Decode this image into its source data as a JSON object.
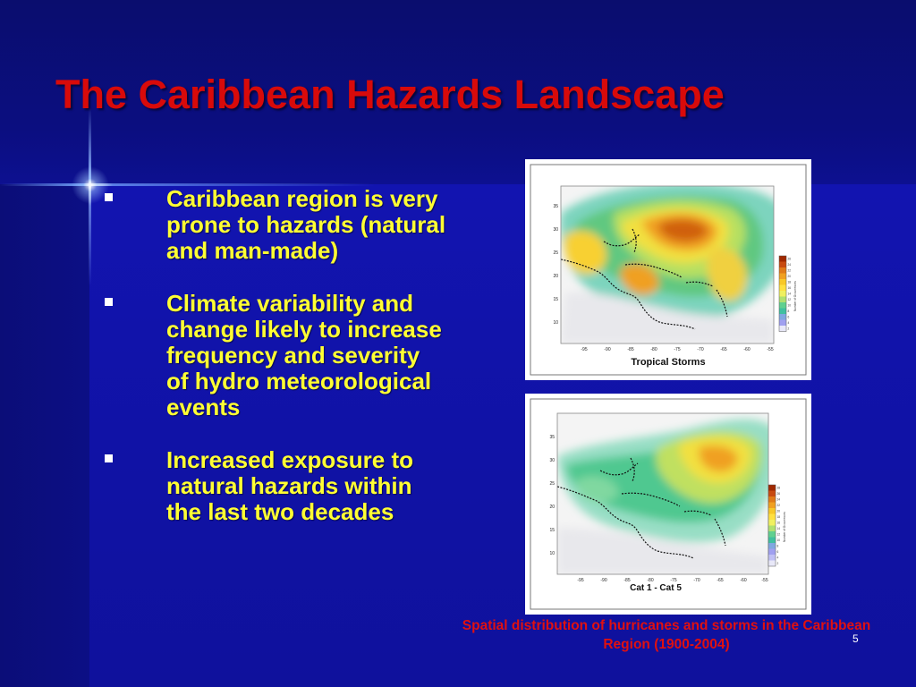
{
  "slide": {
    "title": "The Caribbean Hazards Landscape",
    "bullets": [
      "Caribbean region is very prone to hazards (natural and man-made)",
      "Climate variability and change likely to increase frequency and severity of hydro meteorological events",
      "Increased exposure to natural hazards within the last two decades"
    ],
    "figures": [
      {
        "label": "Tropical Storms",
        "y_ticks": [
          "35",
          "30",
          "25",
          "20",
          "15",
          "10"
        ],
        "x_ticks": [
          "-95",
          "-90",
          "-85",
          "-80",
          "-75",
          "-70",
          "-65",
          "-60",
          "-55"
        ],
        "legend_title": "Number of Occurrences",
        "legend_values": [
          "26",
          "24",
          "22",
          "20",
          "18",
          "16",
          "14",
          "12",
          "10",
          "8",
          "6",
          "4",
          "2"
        ],
        "legend_colors": [
          "#a02800",
          "#c84a10",
          "#e07a18",
          "#f0a020",
          "#f8c828",
          "#ffe040",
          "#f0f060",
          "#b0e070",
          "#60d090",
          "#40c0a0",
          "#80a8e0",
          "#a0a0f0",
          "#e8e8f8"
        ]
      },
      {
        "label": "Cat 1 - Cat 5",
        "y_ticks": [
          "35",
          "30",
          "25",
          "20",
          "15",
          "10"
        ],
        "x_ticks": [
          "-95",
          "-90",
          "-85",
          "-80",
          "-75",
          "-70",
          "-65",
          "-60",
          "-55"
        ],
        "legend_title": "Number of Occurrences",
        "legend_values": [
          "28",
          "26",
          "24",
          "22",
          "20",
          "18",
          "16",
          "14",
          "12",
          "10",
          "8",
          "6",
          "4",
          "2"
        ],
        "legend_colors": [
          "#a02800",
          "#c84a10",
          "#e07a18",
          "#f0a020",
          "#f8c828",
          "#ffe040",
          "#f0f060",
          "#b0e070",
          "#60d090",
          "#40c0a0",
          "#80a8e0",
          "#a0a0f0",
          "#c0c0f4",
          "#e8e8f8"
        ]
      }
    ],
    "caption": "Spatial distribution of hurricanes and storms in the Caribbean Region (1900-2004)",
    "page_number": "5"
  },
  "colors": {
    "title": "#d80a0a",
    "bullet_text": "#ffff33",
    "caption": "#e01010",
    "background": "#1214b0"
  }
}
